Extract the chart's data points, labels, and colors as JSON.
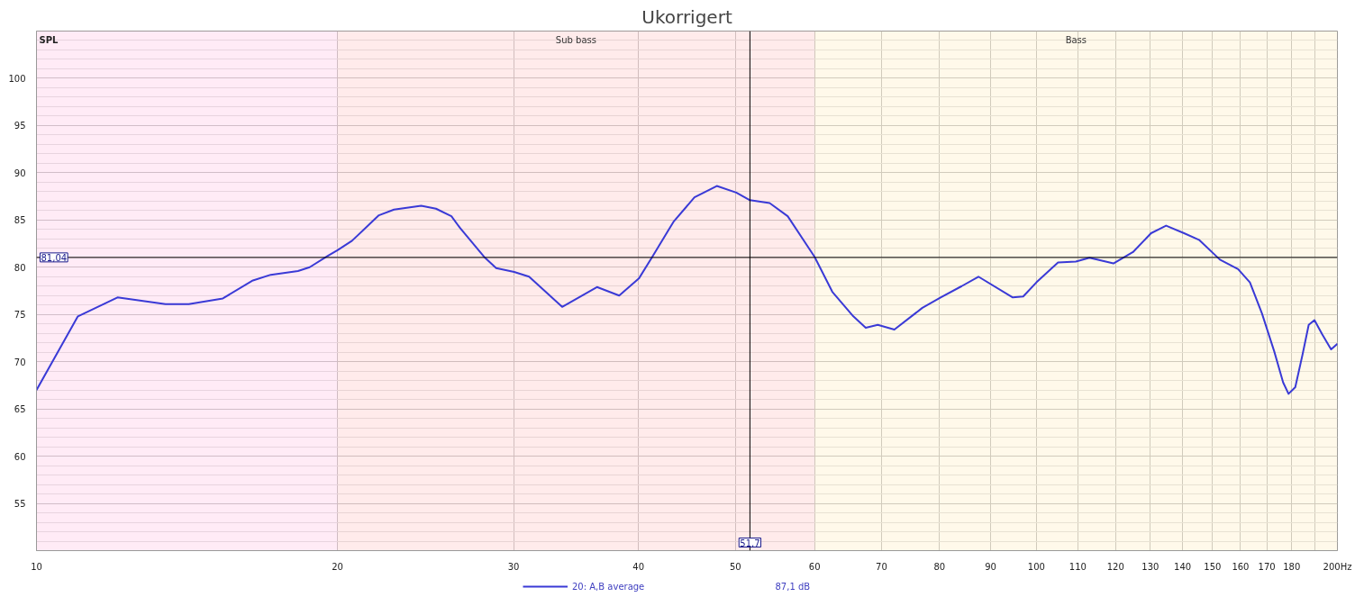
{
  "chart_data": {
    "type": "line",
    "title": "Ukorrigert",
    "ylabel": "SPL",
    "x": [
      10,
      11,
      12.05,
      13.46,
      14.2,
      15.36,
      16.46,
      17.15,
      18.26,
      18.76,
      19.56,
      20.0,
      20.68,
      22.0,
      22.78,
      24.25,
      25.09,
      26.0,
      26.5,
      28.03,
      28.82,
      30.04,
      31.09,
      33.55,
      36.35,
      38.26,
      40.03,
      41.29,
      43.35,
      45.5,
      47.9,
      50.1,
      51.7,
      54.1,
      56.4,
      60,
      62.5,
      65.6,
      67.5,
      69.4,
      72.1,
      76.9,
      80.2,
      84.2,
      87.5,
      94.7,
      97.0,
      100,
      105.1,
      109.5,
      113.0,
      119.4,
      124.9,
      130.2,
      134.8,
      140.5,
      145.4,
      152.6,
      159.1,
      163.5,
      168.1,
      172.9,
      176.5,
      178.7,
      181.5,
      184.6,
      187.2,
      189.7,
      193.1,
      197.1,
      200
    ],
    "series": [
      {
        "name": "20: A,B average",
        "color": "#3a3ad6",
        "values": [
          67.0,
          74.8,
          76.8,
          76.1,
          76.1,
          76.7,
          78.6,
          79.2,
          79.6,
          80.0,
          81.2,
          81.8,
          82.8,
          85.5,
          86.1,
          86.5,
          86.2,
          85.4,
          84.2,
          81.1,
          79.9,
          79.5,
          79.0,
          75.8,
          77.9,
          77.0,
          78.8,
          81.1,
          84.8,
          87.4,
          88.6,
          87.9,
          87.1,
          86.8,
          85.4,
          81.1,
          77.4,
          74.8,
          73.6,
          73.9,
          73.4,
          75.7,
          76.8,
          78.0,
          79.0,
          76.8,
          76.9,
          78.4,
          80.5,
          80.6,
          81.0,
          80.4,
          81.6,
          83.6,
          84.4,
          83.6,
          82.9,
          80.8,
          79.8,
          78.4,
          75.1,
          71.1,
          67.8,
          66.6,
          67.3,
          70.8,
          73.9,
          74.4,
          72.9,
          71.3,
          71.9
        ]
      }
    ],
    "log": "x",
    "xlim": [
      10,
      200
    ],
    "ylim": [
      50,
      105
    ],
    "xticks": [
      10,
      20,
      30,
      40,
      50,
      60,
      70,
      80,
      90,
      100,
      110,
      120,
      130,
      140,
      150,
      160,
      170,
      180,
      {
        "value": 190,
        "label": null
      },
      {
        "value": 200,
        "label": "200Hz"
      }
    ],
    "yticks": [
      {
        "value": 51,
        "label": null
      },
      {
        "value": 52,
        "label": null
      },
      {
        "value": 53,
        "label": null
      },
      {
        "value": 54,
        "label": null
      },
      55,
      {
        "value": 56,
        "label": null
      },
      {
        "value": 57,
        "label": null
      },
      {
        "value": 58,
        "label": null
      },
      {
        "value": 59,
        "label": null
      },
      60,
      {
        "value": 61,
        "label": null
      },
      {
        "value": 62,
        "label": null
      },
      {
        "value": 63,
        "label": null
      },
      {
        "value": 64,
        "label": null
      },
      65,
      {
        "value": 66,
        "label": null
      },
      {
        "value": 67,
        "label": null
      },
      {
        "value": 68,
        "label": null
      },
      {
        "value": 69,
        "label": null
      },
      70,
      {
        "value": 71,
        "label": null
      },
      {
        "value": 72,
        "label": null
      },
      {
        "value": 73,
        "label": null
      },
      {
        "value": 74,
        "label": null
      },
      75,
      {
        "value": 76,
        "label": null
      },
      {
        "value": 77,
        "label": null
      },
      {
        "value": 78,
        "label": null
      },
      {
        "value": 79,
        "label": null
      },
      80,
      {
        "value": 81,
        "label": null
      },
      {
        "value": 82,
        "label": null
      },
      {
        "value": 83,
        "label": null
      },
      {
        "value": 84,
        "label": null
      },
      85,
      {
        "value": 86,
        "label": null
      },
      {
        "value": 87,
        "label": null
      },
      {
        "value": 88,
        "label": null
      },
      {
        "value": 89,
        "label": null
      },
      90,
      {
        "value": 91,
        "label": null
      },
      {
        "value": 92,
        "label": null
      },
      {
        "value": 93,
        "label": null
      },
      {
        "value": 94,
        "label": null
      },
      95,
      {
        "value": 96,
        "label": null
      },
      {
        "value": 97,
        "label": null
      },
      {
        "value": 98,
        "label": null
      },
      {
        "value": 99,
        "label": null
      },
      100,
      {
        "value": 101,
        "label": null
      },
      {
        "value": 102,
        "label": null
      },
      {
        "value": 103,
        "label": null
      },
      {
        "value": 104,
        "label": null
      }
    ],
    "grid": true,
    "legend": "bottom",
    "ref_lines": [
      {
        "axis": "x",
        "value": 51.7,
        "label": "51,7",
        "color": "#000000"
      },
      {
        "axis": "y",
        "value": 81.04,
        "label": "81,04",
        "color": "#000000"
      }
    ],
    "bands": [
      {
        "axis": "x",
        "from": 10,
        "to": 20,
        "label": null,
        "color": "#ffa6d8"
      },
      {
        "axis": "x",
        "from": 20,
        "to": 60,
        "label": "Sub bass",
        "color": "#ffa3a3"
      },
      {
        "axis": "x",
        "from": 60,
        "to": 200,
        "label": "Bass",
        "color": "#fde29e"
      }
    ],
    "annotations": [
      "87,1 dB"
    ]
  }
}
